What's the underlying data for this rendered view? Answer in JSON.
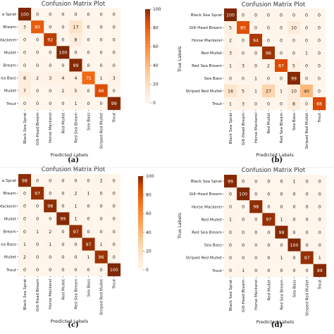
{
  "chart_data": [
    {
      "type": "heatmap",
      "panel_label": "(a)",
      "title": "Confusion Matrix Plot",
      "xlabel": "Predicted Labels",
      "ylabel": "",
      "x_categories": [
        "Black Sea Sprat",
        "Gilt-Head Bream",
        "Horse Mackerel",
        "Red Mullet",
        "Red Sea Bream",
        "Sea Bass",
        "Striped Red Mullet",
        "Trout"
      ],
      "y_categories": [
        "a Sprat",
        "Bream",
        "Mackerel",
        "Mullet",
        "Bream",
        "ea Bass",
        "Mullet",
        "Trout"
      ],
      "values": [
        [
          100,
          0,
          0,
          0,
          0,
          0,
          0,
          0
        ],
        [
          3,
          80,
          0,
          0,
          17,
          0,
          0,
          0
        ],
        [
          0,
          0,
          92,
          0,
          8,
          0,
          0,
          0
        ],
        [
          0,
          0,
          0,
          100,
          0,
          0,
          0,
          0
        ],
        [
          0,
          0,
          0,
          0,
          99,
          0,
          0,
          0
        ],
        [
          8,
          2,
          3,
          4,
          4,
          75,
          1,
          3
        ],
        [
          7,
          0,
          0,
          2,
          5,
          0,
          86,
          0
        ],
        [
          0,
          0,
          0,
          0,
          1,
          0,
          0,
          99
        ]
      ],
      "colorbar_ticks": [
        0,
        20,
        40,
        60,
        80,
        100
      ],
      "vmin": 0,
      "vmax": 100,
      "colormap": "Oranges"
    },
    {
      "type": "heatmap",
      "panel_label": "(b)",
      "title": "Confusion Matrix Plot",
      "xlabel": "Predicted Labels",
      "ylabel": "True Labels",
      "x_categories": [
        "Black Sea Sprat",
        "Gilt-Head Bream",
        "Horse Mackerel",
        "Red Mullet",
        "Red Sea Bream",
        "Sea Bass",
        "Striped Red Mullet",
        "Trout"
      ],
      "y_categories": [
        "Black Sea Sprat",
        "Gilt-Head Bream",
        "Horse Mackerel",
        "Red Mullet",
        "Red Sea Bream",
        "Sea Bass",
        "Striped Red Mullet",
        "Trout"
      ],
      "values": [
        [
          100,
          0,
          0,
          0,
          0,
          0,
          0,
          0
        ],
        [
          5,
          85,
          0,
          0,
          0,
          10,
          0,
          0
        ],
        [
          2,
          0,
          94,
          0,
          0,
          0,
          0,
          0
        ],
        [
          3,
          0,
          0,
          96,
          0,
          0,
          1,
          0
        ],
        [
          1,
          3,
          0,
          2,
          87,
          5,
          0,
          0
        ],
        [
          0,
          0,
          1,
          0,
          0,
          99,
          0,
          0
        ],
        [
          16,
          5,
          1,
          27,
          1,
          10,
          40,
          0
        ],
        [
          1,
          3,
          0,
          0,
          0,
          8,
          0,
          88
        ]
      ],
      "vmin": 0,
      "vmax": 100,
      "colormap": "Oranges"
    },
    {
      "type": "heatmap",
      "panel_label": "(c)",
      "title": "Confusion Matrix Plot",
      "xlabel": "Predicted Labels",
      "ylabel": "",
      "x_categories": [
        "Black Sea Sprat",
        "Gilt-Head Bream",
        "Horse Mackerel",
        "Red Mullet",
        "Red Sea Bream",
        "Sea Bass",
        "Striped Red Mullet",
        "Trout"
      ],
      "y_categories": [
        "a Sprat",
        "Bream",
        "Mackerel",
        "Mullet",
        "Bream",
        "ea Bass",
        "Mullet",
        "Trout"
      ],
      "values": [
        [
          98,
          0,
          0,
          0,
          0,
          0,
          2,
          0
        ],
        [
          0,
          97,
          0,
          0,
          2,
          1,
          0,
          0
        ],
        [
          0,
          0,
          98,
          0,
          1,
          0,
          0,
          0
        ],
        [
          0,
          0,
          0,
          99,
          1,
          0,
          0,
          0
        ],
        [
          0,
          1,
          2,
          0,
          97,
          0,
          0,
          0
        ],
        [
          1,
          0,
          1,
          0,
          0,
          97,
          1,
          0
        ],
        [
          2,
          0,
          0,
          0,
          0,
          1,
          96,
          0
        ],
        [
          0,
          0,
          0,
          0,
          0,
          0,
          0,
          100
        ]
      ],
      "colorbar_ticks": [
        0,
        20,
        40,
        60,
        80,
        100
      ],
      "vmin": 0,
      "vmax": 100,
      "colormap": "Oranges"
    },
    {
      "type": "heatmap",
      "panel_label": "(d)",
      "title": "Confusion Matrix Plot",
      "xlabel": "Predicted Labels",
      "ylabel": "True Labels",
      "x_categories": [
        "Black Sea Sprat",
        "Gilt-Head Bream",
        "Horse Mackerel",
        "Red Mullet",
        "Red Sea Bream",
        "Sea Bass",
        "Striped Red Mullet",
        "Trout"
      ],
      "y_categories": [
        "Black Sea Sprat",
        "Gilt-Head Bream",
        "Horse Mackerel",
        "Red Mullet",
        "Red Sea Bream",
        "Sea Bass",
        "Striped Red Mullet",
        "Trout"
      ],
      "values": [
        [
          99,
          0,
          0,
          0,
          0,
          1,
          0,
          0
        ],
        [
          0,
          100,
          0,
          0,
          0,
          0,
          0,
          0
        ],
        [
          0,
          0,
          98,
          0,
          0,
          0,
          0,
          0
        ],
        [
          1,
          0,
          0,
          97,
          1,
          0,
          0,
          0
        ],
        [
          0,
          0,
          0,
          0,
          99,
          0,
          0,
          0
        ],
        [
          0,
          0,
          0,
          0,
          0,
          100,
          0,
          0
        ],
        [
          0,
          0,
          0,
          0,
          1,
          0,
          97,
          1
        ],
        [
          0,
          1,
          0,
          0,
          0,
          0,
          0,
          99
        ]
      ],
      "vmin": 0,
      "vmax": 100,
      "colormap": "Oranges"
    }
  ]
}
